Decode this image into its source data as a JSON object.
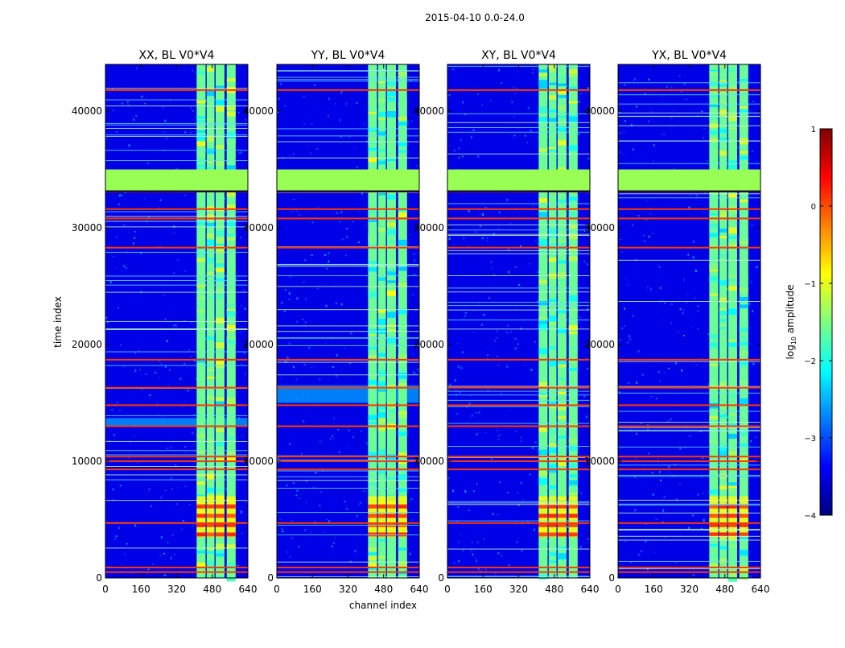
{
  "chart_data": {
    "type": "heatmap",
    "suptitle": "2015-04-10 0.0-24.0",
    "xlabel": "channel index",
    "ylabel": "time index",
    "xlim": [
      0,
      640
    ],
    "ylim": [
      0,
      44000
    ],
    "x_ticks": [
      "0",
      "160",
      "320",
      "480",
      "640"
    ],
    "x_tick_values": [
      0,
      160,
      320,
      480,
      640
    ],
    "y_ticks": [
      "0",
      "10000",
      "20000",
      "30000",
      "40000"
    ],
    "y_tick_values": [
      0,
      10000,
      20000,
      30000,
      40000
    ],
    "panels": [
      {
        "title": "XX, BL V0*V4",
        "show_ylabel": true,
        "extra_band": [
          13000,
          13700
        ]
      },
      {
        "title": "YY, BL V0*V4",
        "show_ylabel": false,
        "extra_band": [
          15000,
          16500
        ]
      },
      {
        "title": "XY, BL V0*V4",
        "show_ylabel": false,
        "extra_band": null
      },
      {
        "title": "YX, BL V0*V4",
        "show_ylabel": false,
        "extra_band": null
      }
    ],
    "rfi_channel_bands": [
      [
        410,
        450
      ],
      [
        455,
        490
      ],
      [
        495,
        535
      ],
      [
        545,
        585
      ]
    ],
    "flagged_time_block": [
      33200,
      35000
    ],
    "hot_rows": [
      500,
      900,
      4700,
      9300,
      10000,
      10400,
      13000,
      14800,
      16300,
      18700,
      28300,
      30800,
      31600,
      33100,
      41800
    ],
    "bright_time_range": [
      3500,
      7000
    ],
    "colorbar": {
      "label": "log10 amplitude",
      "ticks": [
        "1",
        "0",
        "−1",
        "−2",
        "−3",
        "−4"
      ],
      "tick_values": [
        1,
        0,
        -1,
        -2,
        -3,
        -4
      ],
      "vmin": -4,
      "vmax": 1,
      "colormap": "jet",
      "background_value": -3.5
    }
  }
}
